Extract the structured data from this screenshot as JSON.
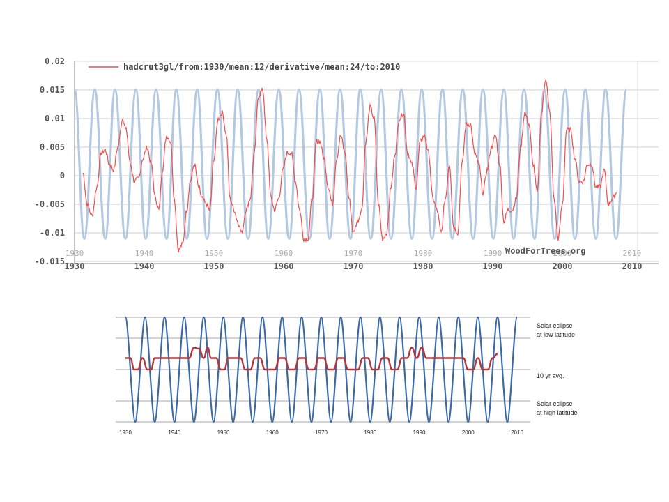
{
  "chart_data": [
    {
      "type": "line",
      "title": "",
      "xlabel": "",
      "ylabel": "",
      "xlim": [
        1930,
        2010
      ],
      "ylim": [
        -0.015,
        0.02
      ],
      "x_ticks": [
        "1930",
        "1940",
        "1950",
        "1960",
        "1970",
        "1980",
        "1990",
        "2000",
        "2010"
      ],
      "y_ticks": [
        "0.02",
        "0.015",
        "0.01",
        "0.005",
        "0",
        "-0.005",
        "-0.01",
        "-0.015"
      ],
      "grid": true,
      "legend_position": "top-left",
      "watermark": "WoodForTrees.org",
      "colors": {
        "red": "#f24b4b",
        "blue": "#b3c9e2",
        "grid": "#cfcfcf"
      },
      "series": [
        {
          "name": "hadcrut3gl/from:1930/mean:12/derivative/mean:24/to:2010",
          "x": [
            1931.2,
            1931.8,
            1932.5,
            1933.2,
            1933.8,
            1934.4,
            1935.0,
            1935.6,
            1936.2,
            1936.9,
            1937.4,
            1938.0,
            1938.6,
            1939.2,
            1939.8,
            1940.4,
            1941.0,
            1941.6,
            1942.1,
            1942.6,
            1943.2,
            1943.8,
            1944.3,
            1944.9,
            1945.5,
            1946.1,
            1946.6,
            1947.2,
            1947.8,
            1948.3,
            1948.9,
            1949.4,
            1950.0,
            1950.6,
            1951.2,
            1951.8,
            1952.3,
            1952.9,
            1953.4,
            1954.0,
            1954.6,
            1955.2,
            1955.8,
            1956.4,
            1957.0,
            1957.6,
            1958.2,
            1958.7,
            1959.3,
            1959.9,
            1960.5,
            1961.1,
            1961.7,
            1962.3,
            1962.9,
            1963.5,
            1964.1,
            1964.7,
            1965.2,
            1965.8,
            1966.4,
            1967.0,
            1967.6,
            1968.2,
            1968.8,
            1969.4,
            1970.0,
            1970.6,
            1971.2,
            1971.8,
            1972.4,
            1973.0,
            1973.6,
            1974.2,
            1974.8,
            1975.4,
            1976.0,
            1976.6,
            1977.2,
            1977.8,
            1978.4,
            1979.0,
            1979.6,
            1980.2,
            1980.8,
            1981.4,
            1982.0,
            1982.6,
            1983.2,
            1983.8,
            1984.4,
            1985.0,
            1985.6,
            1986.2,
            1986.8,
            1987.4,
            1988.0,
            1988.6,
            1989.2,
            1989.8,
            1990.4,
            1991.0,
            1991.6,
            1992.2,
            1992.8,
            1993.4,
            1994.0,
            1994.6,
            1995.2,
            1995.8,
            1996.4,
            1997.0,
            1997.6,
            1998.2,
            1998.8,
            1999.4,
            2000.0,
            2000.6,
            2001.2,
            2001.8,
            2002.4,
            2003.0,
            2003.6,
            2004.2,
            2004.8,
            2005.4,
            2006.0,
            2006.6,
            2007.2,
            2007.8
          ],
          "y": [
            0.0005,
            -0.005,
            -0.007,
            -0.002,
            0.004,
            0.0045,
            0.002,
            0.001,
            0.005,
            0.01,
            0.008,
            0.002,
            -0.001,
            -0.0005,
            0.003,
            0.005,
            0.002,
            -0.004,
            -0.006,
            0.001,
            0.007,
            0.006,
            -0.004,
            -0.013,
            -0.012,
            -0.006,
            -0.001,
            0.002,
            -0.002,
            -0.004,
            -0.005,
            -0.006,
            0.003,
            0.01,
            0.011,
            0.007,
            -0.004,
            -0.006,
            -0.008,
            -0.01,
            -0.006,
            -0.004,
            0.004,
            0.014,
            0.015,
            0.006,
            -0.004,
            -0.006,
            -0.004,
            0.001,
            0.004,
            0.004,
            -0.001,
            -0.006,
            -0.011,
            -0.011,
            -0.004,
            0.006,
            0.006,
            0.003,
            -0.002,
            -0.005,
            0.003,
            0.007,
            0.004,
            -0.004,
            -0.01,
            -0.008,
            -0.006,
            0.006,
            0.012,
            0.01,
            -0.005,
            -0.011,
            -0.01,
            -0.002,
            0.004,
            0.01,
            0.011,
            0.004,
            0.002,
            -0.002,
            0.006,
            0.007,
            0.004,
            -0.004,
            -0.006,
            -0.01,
            -0.004,
            0.002,
            -0.009,
            -0.01,
            0.002,
            0.009,
            0.009,
            0.004,
            0.002,
            -0.003,
            0.001,
            0.005,
            0.007,
            0.002,
            -0.008,
            -0.006,
            -0.006,
            -0.004,
            0.005,
            0.011,
            0.009,
            0.002,
            -0.003,
            0.011,
            0.017,
            0.011,
            -0.004,
            -0.011,
            -0.005,
            0.008,
            0.008,
            0.003,
            -0.001,
            -0.001,
            0.002,
            0.002,
            -0.002,
            -0.002,
            0.001,
            -0.005,
            -0.004,
            -0.003
          ],
          "color": "#f24b4b"
        },
        {
          "name": "",
          "kind": "square-wave",
          "x": [
            1930,
            1931.4,
            1932.9,
            1934.4,
            1935.8,
            1937.3,
            1938.8,
            1940.2,
            1941.7,
            1943.2,
            1944.6,
            1946.1,
            1947.6,
            1949.0,
            1950.5,
            1952.0,
            1953.4,
            1954.9,
            1956.4,
            1957.8,
            1959.3,
            1960.8,
            1962.2,
            1963.7,
            1965.2,
            1966.6,
            1968.1,
            1969.6,
            1971.0,
            1972.5,
            1974.0,
            1975.4,
            1976.9,
            1978.4,
            1979.8,
            1981.3,
            1982.8,
            1984.2,
            1985.7,
            1987.2,
            1988.6,
            1990.1,
            1991.6,
            1993.0,
            1994.5,
            1996.0,
            1997.4,
            1998.9,
            2000.4,
            2001.8,
            2003.3,
            2004.8,
            2006.2,
            2007.7,
            2009.2
          ],
          "y": [
            0.015,
            -0.011,
            0.015,
            -0.011,
            0.015,
            -0.011,
            0.015,
            -0.011,
            0.015,
            -0.011,
            0.015,
            -0.011,
            0.015,
            -0.011,
            0.015,
            -0.011,
            0.015,
            -0.011,
            0.015,
            -0.011,
            0.015,
            -0.011,
            0.015,
            -0.011,
            0.015,
            -0.011,
            0.015,
            -0.011,
            0.015,
            -0.011,
            0.015,
            -0.011,
            0.015,
            -0.011,
            0.015,
            -0.011,
            0.015,
            -0.011,
            0.015,
            -0.011,
            0.015,
            -0.011,
            0.015,
            -0.011,
            0.015,
            -0.011,
            0.015,
            -0.011,
            0.015,
            -0.011,
            0.015,
            -0.011,
            0.015,
            -0.011,
            0.015
          ],
          "color": "#b3c9e2"
        }
      ]
    },
    {
      "type": "line",
      "title": "",
      "xlabel": "",
      "ylabel": "",
      "xlim": [
        1930,
        2010
      ],
      "ylim": [
        -1,
        1
      ],
      "x_ticks": [
        "1930",
        "1940",
        "1950",
        "1960",
        "1970",
        "1980",
        "1990",
        "2000",
        "2010"
      ],
      "grid": true,
      "annotations": [
        {
          "id": "top",
          "lines": [
            "Solar eclipse",
            "at low latitude"
          ],
          "level": 1
        },
        {
          "id": "mid",
          "lines": [
            "10 yr avg."
          ],
          "level": 0
        },
        {
          "id": "bottom",
          "lines": [
            "Solar eclipse",
            "at high latitude"
          ],
          "level": -1
        }
      ],
      "colors": {
        "blue": "#3a6aa8",
        "red": "#b2383c",
        "grid": "#a8a8a8"
      },
      "series": [
        {
          "name": "",
          "kind": "square-wave",
          "x": [
            1930,
            1932,
            1934,
            1936,
            1938,
            1940,
            1942,
            1944,
            1946,
            1948,
            1950,
            1952,
            1954,
            1956,
            1958,
            1960,
            1962,
            1964,
            1966,
            1968,
            1970,
            1972,
            1974,
            1976,
            1978,
            1980,
            1982,
            1984,
            1986,
            1988,
            1990,
            1992,
            1994,
            1996,
            1998,
            2000,
            2002,
            2004,
            2006,
            2008,
            2010
          ],
          "y": [
            1,
            -1,
            1,
            -1,
            1,
            -1,
            1,
            -1,
            1,
            -1,
            1,
            -1,
            1,
            -1,
            1,
            -1,
            1,
            -1,
            1,
            -1,
            1,
            -1,
            1,
            -1,
            1,
            -1,
            1,
            -1,
            1,
            -1,
            1,
            -1,
            1,
            -1,
            1,
            -1,
            1,
            -1,
            1,
            -1,
            1
          ],
          "color": "#3a6aa8"
        },
        {
          "name": "",
          "x": [
            1930,
            1931,
            1931.8,
            1932.5,
            1933.5,
            1934.5,
            1935.2,
            1936,
            1937.5,
            1939,
            1941,
            1943,
            1944,
            1945,
            1946,
            1946.8,
            1947.5,
            1948.5,
            1949.5,
            1950.2,
            1951,
            1952,
            1953.5,
            1954.5,
            1955.5,
            1956.5,
            1957.5,
            1958.5,
            1959.5,
            1960.5,
            1961.5,
            1962.5,
            1963.5,
            1964.5,
            1965.5,
            1966.5,
            1967.5,
            1968.5,
            1969.5,
            1970.5,
            1971.5,
            1972.5,
            1973.5,
            1974.5,
            1975.5,
            1976.5,
            1977.5,
            1978.5,
            1979.5,
            1980.5,
            1981.5,
            1982.5,
            1983.5,
            1984.5,
            1985.5,
            1986.5,
            1987.5,
            1988.5,
            1989.5,
            1990.5,
            1991.5,
            1992.5,
            1993.5,
            1995,
            1997,
            1999,
            2000,
            2001,
            2002,
            2003,
            2004,
            2005,
            2006
          ],
          "y": [
            0.22,
            0.22,
            0,
            0,
            0.22,
            0,
            0,
            0.22,
            0.22,
            0.22,
            0.22,
            0.22,
            0.42,
            0.4,
            0.22,
            0.42,
            0.22,
            0.22,
            0,
            0,
            0.22,
            0.22,
            0.22,
            0,
            0,
            0.22,
            0.22,
            0,
            0,
            0,
            0.22,
            0.22,
            0,
            0,
            0.22,
            0.22,
            0,
            0,
            0.22,
            0.22,
            0,
            0,
            0.22,
            0.22,
            0,
            0,
            0,
            0.22,
            0.22,
            0,
            0,
            0.22,
            0.22,
            0,
            0,
            0.22,
            0.22,
            0.42,
            0.22,
            0.42,
            0.22,
            0.22,
            0.22,
            0.22,
            0.22,
            0.22,
            0,
            0,
            0.22,
            0,
            0,
            0.22,
            0.3
          ],
          "color": "#b2383c"
        }
      ]
    }
  ]
}
